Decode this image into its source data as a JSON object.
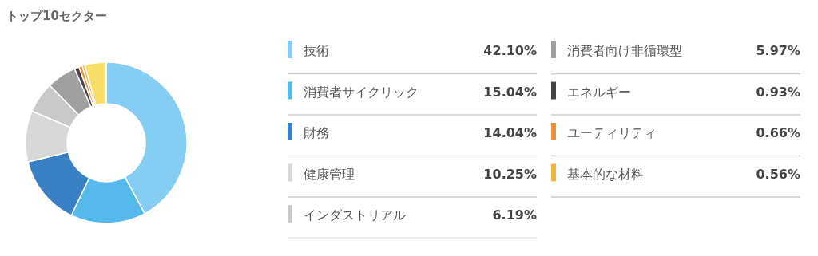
{
  "chart_data": {
    "type": "donut",
    "title": "トップ10セクター",
    "categories": [
      "技術",
      "消費者サイクリック",
      "財務",
      "健康管理",
      "インダストリアル",
      "消費者向け非循環型",
      "エネルギー",
      "ユーティリティ",
      "基本的な材料",
      null
    ],
    "values": [
      42.1,
      15.04,
      14.04,
      10.25,
      6.19,
      5.97,
      0.93,
      0.66,
      0.56,
      4.26
    ],
    "value_labels": [
      "42.10%",
      "15.04%",
      "14.04%",
      "10.25%",
      "6.19%",
      "5.97%",
      "0.93%",
      "0.66%",
      "0.56%",
      null
    ],
    "colors": [
      "#86cdf3",
      "#55b9ec",
      "#3a80c4",
      "#d8d8d8",
      "#c9c9c9",
      "#a0a0a0",
      "#454545",
      "#e8923a",
      "#f2b544",
      "#f9de6a"
    ],
    "legend": "right"
  }
}
